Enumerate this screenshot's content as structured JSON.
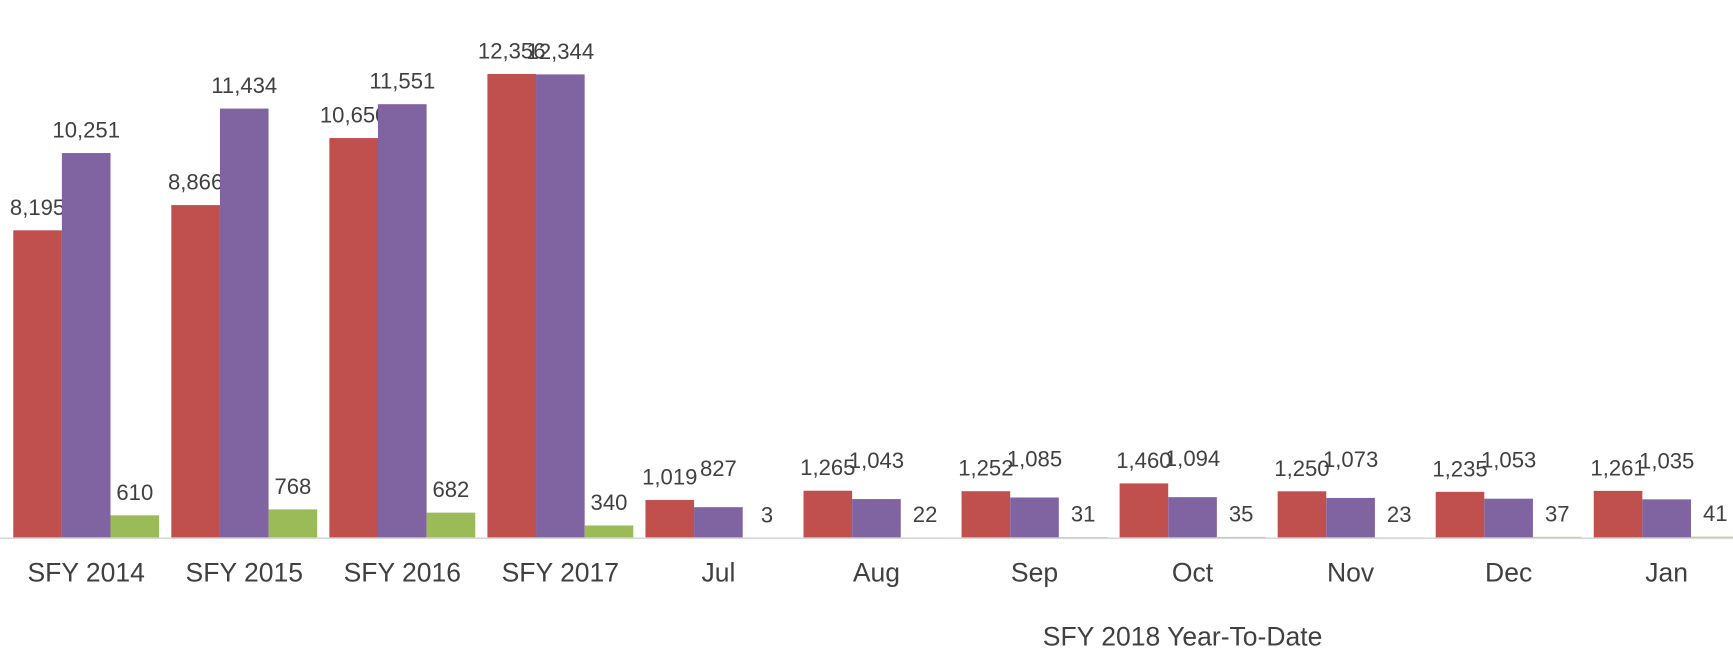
{
  "chart_data": {
    "type": "bar",
    "categories": [
      "SFY 2014",
      "SFY 2015",
      "SFY 2016",
      "SFY 2017",
      "Jul",
      "Aug",
      "Sep",
      "Oct",
      "Nov",
      "Dec",
      "Jan"
    ],
    "series": [
      {
        "color": "#c0504d",
        "values": [
          8195,
          8866,
          10650,
          12356,
          1019,
          1265,
          1252,
          1460,
          1250,
          1235,
          1261
        ],
        "value_labels": [
          "8,195",
          "8,866",
          "10,650",
          "12,356",
          "1,019",
          "1,265",
          "1,252",
          "1,460",
          "1,250",
          "1,235",
          "1,261"
        ]
      },
      {
        "color": "#8064a2",
        "values": [
          10251,
          11434,
          11551,
          12344,
          827,
          1043,
          1085,
          1094,
          1073,
          1053,
          1035
        ],
        "value_labels": [
          "10,251",
          "11,434",
          "11,551",
          "12,344",
          "827",
          "1,043",
          "1,085",
          "1,094",
          "1,073",
          "1,053",
          "1,035"
        ]
      },
      {
        "color": "#9bbb59",
        "values": [
          610,
          768,
          682,
          340,
          3,
          22,
          31,
          35,
          23,
          37,
          41
        ],
        "value_labels": [
          "610",
          "768",
          "682",
          "340",
          "3",
          "22",
          "31",
          "35",
          "23",
          "37",
          "41"
        ]
      }
    ],
    "ylim": [
      0,
      14000
    ],
    "annotation": "SFY 2018 Year-To-Date"
  }
}
